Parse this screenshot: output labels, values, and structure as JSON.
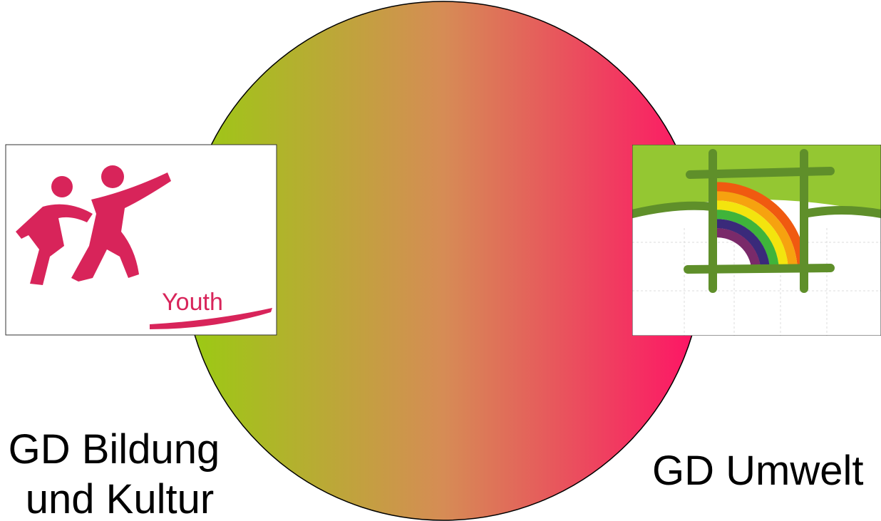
{
  "left": {
    "logo_text": "Youth",
    "lines": [
      "GD Bildung",
      "und Kultur"
    ]
  },
  "right": {
    "lines": [
      "GD Umwelt"
    ]
  }
}
